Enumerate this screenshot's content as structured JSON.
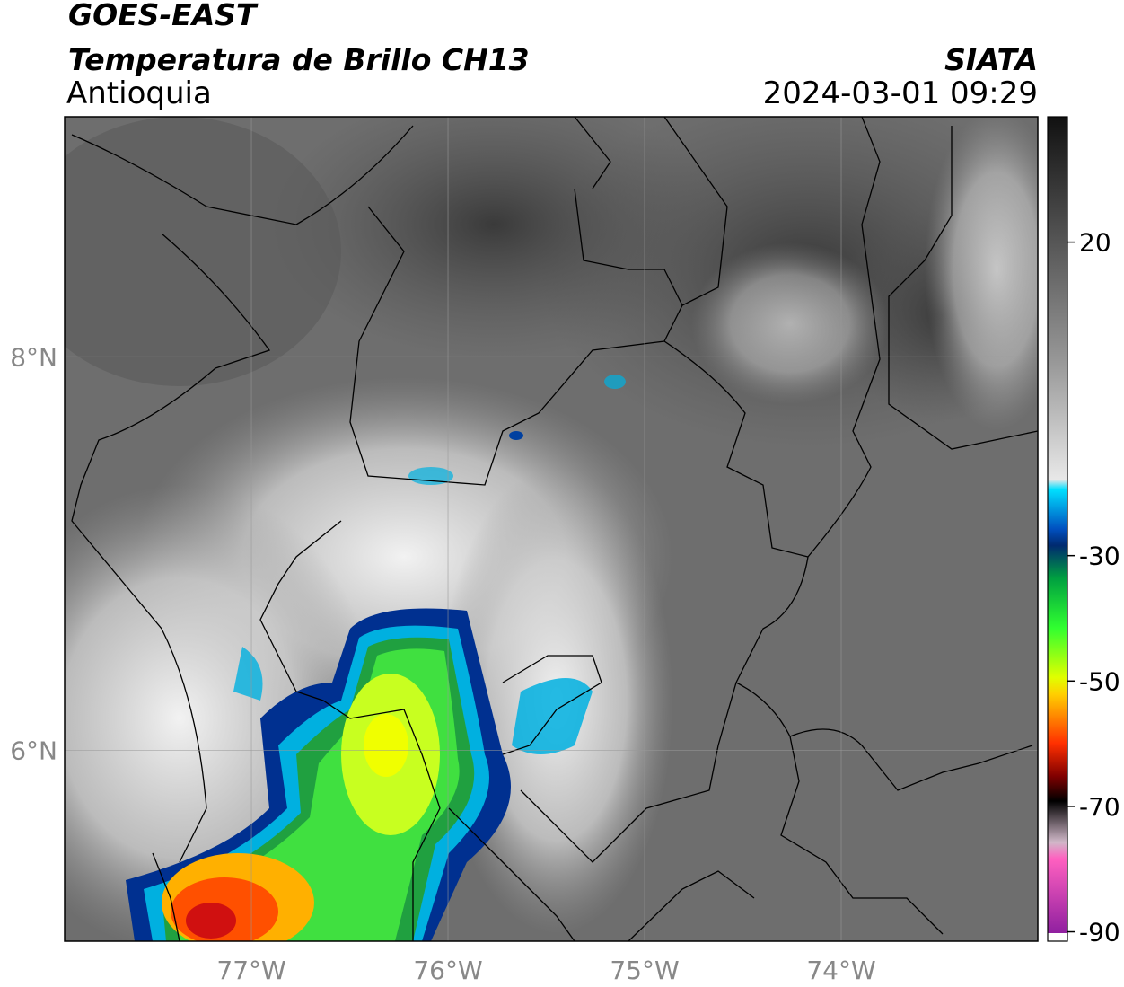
{
  "header": {
    "title": "GOES-EAST",
    "subtitle": "Temperatura de Brillo CH13",
    "region": "Antioquia",
    "source": "SIATA",
    "datetime": "2024-03-01 09:29"
  },
  "map": {
    "xlim": [
      -77.95,
      -73.0
    ],
    "ylim": [
      5.03,
      9.22
    ],
    "xticks": [
      {
        "value": -77,
        "label": "77°W"
      },
      {
        "value": -76,
        "label": "76°W"
      },
      {
        "value": -75,
        "label": "75°W"
      },
      {
        "value": -74,
        "label": "74°W"
      }
    ],
    "yticks": [
      {
        "value": 8,
        "label": "8°N"
      },
      {
        "value": 6,
        "label": "6°N"
      }
    ],
    "grid": true
  },
  "colorbar": {
    "lim": [
      -91.5,
      40
    ],
    "ticks": [
      20,
      -30,
      -50,
      -70,
      -90
    ]
  }
}
